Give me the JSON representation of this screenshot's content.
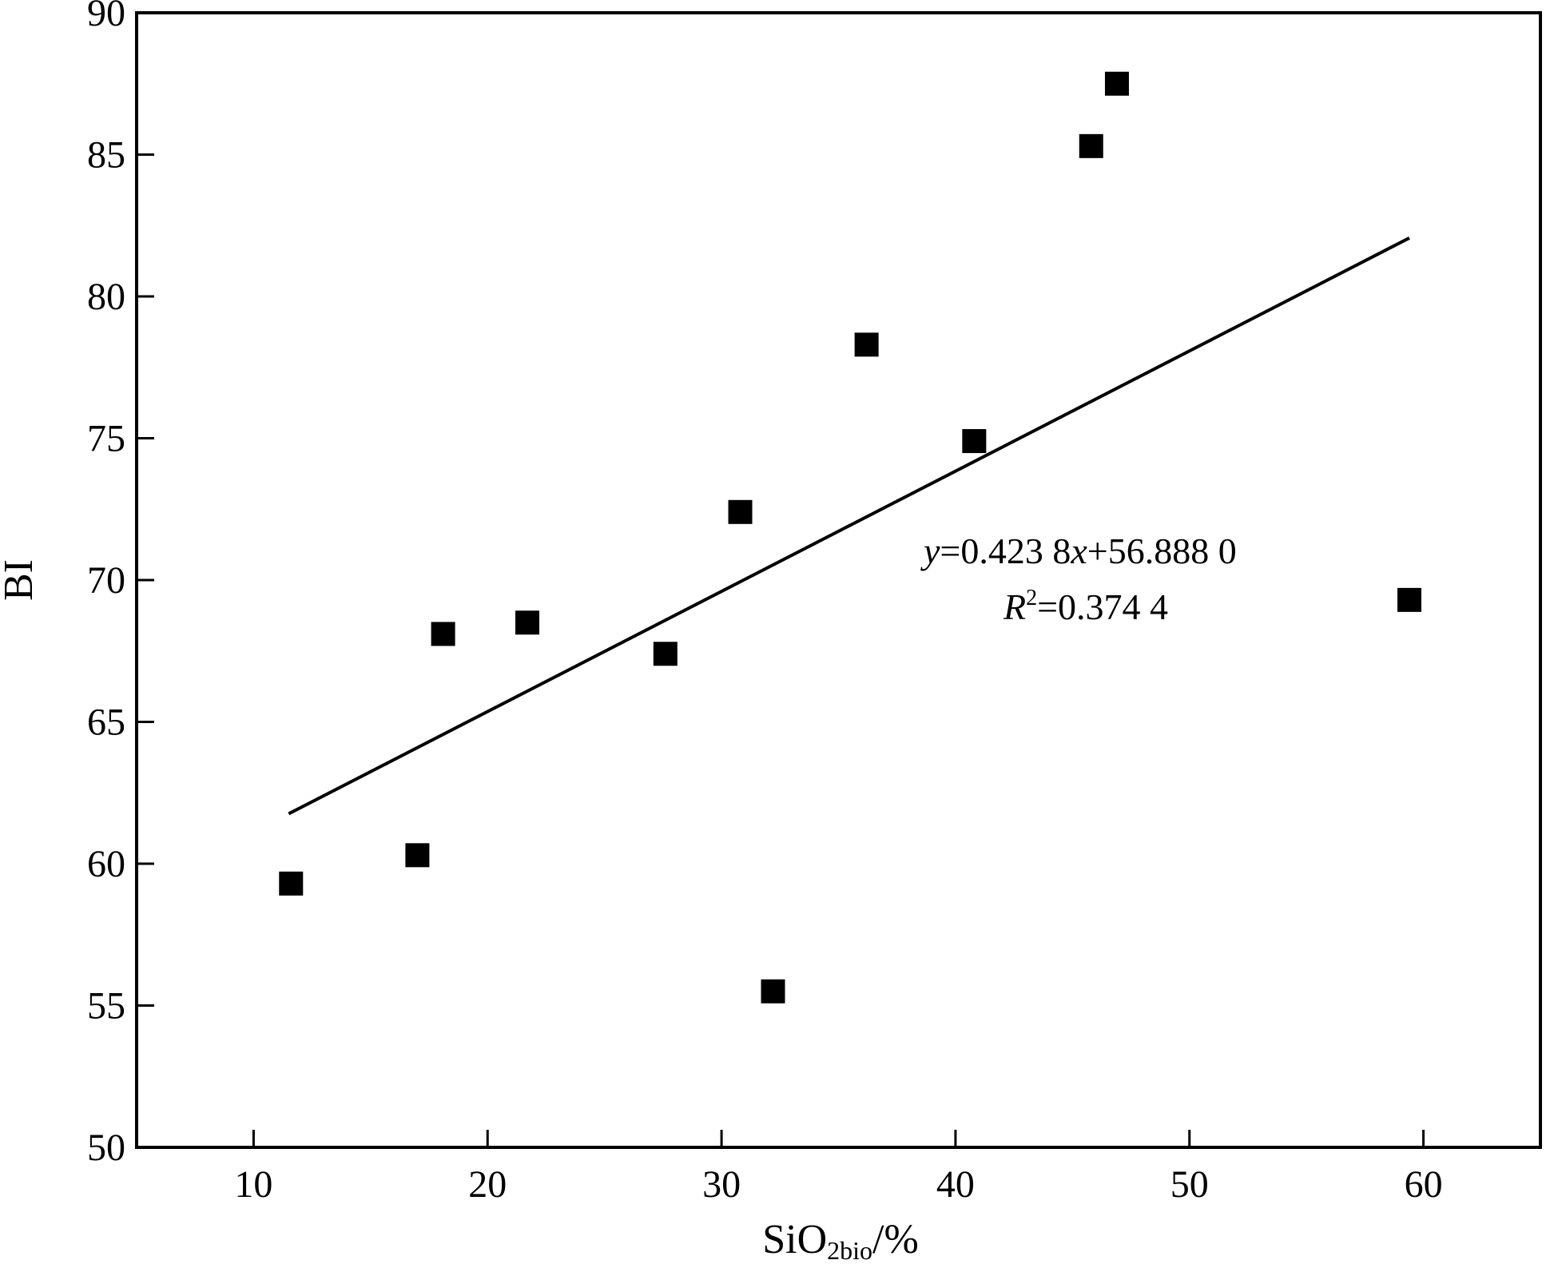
{
  "chart_data": {
    "type": "scatter",
    "xlabel": {
      "main": "SiO",
      "sub": "2bio",
      "unit": "/%"
    },
    "ylabel": "BI",
    "xlim": [
      5,
      65
    ],
    "ylim": [
      50,
      90
    ],
    "xticks": [
      10,
      20,
      30,
      40,
      50,
      60
    ],
    "yticks": [
      50,
      55,
      60,
      65,
      70,
      75,
      80,
      85,
      90
    ],
    "grid": false,
    "points": [
      {
        "x": 11.6,
        "y": 59.3
      },
      {
        "x": 17.0,
        "y": 60.3
      },
      {
        "x": 18.1,
        "y": 68.1
      },
      {
        "x": 21.7,
        "y": 68.5
      },
      {
        "x": 27.6,
        "y": 67.4
      },
      {
        "x": 30.8,
        "y": 72.4
      },
      {
        "x": 32.2,
        "y": 55.5
      },
      {
        "x": 36.2,
        "y": 78.3
      },
      {
        "x": 40.8,
        "y": 74.9
      },
      {
        "x": 45.8,
        "y": 85.3
      },
      {
        "x": 46.9,
        "y": 87.5
      },
      {
        "x": 59.4,
        "y": 69.3
      }
    ],
    "fit_line": {
      "slope": 0.4238,
      "intercept": 56.888,
      "x_range": [
        11.5,
        59.4
      ]
    },
    "annotation": {
      "eq_var": "y",
      "eq_mid": "=0.423 8",
      "eq_var2": "x",
      "eq_end": "+56.888 0",
      "r_var": "R",
      "r_exp": "2",
      "r_end": "=0.374 4"
    }
  }
}
